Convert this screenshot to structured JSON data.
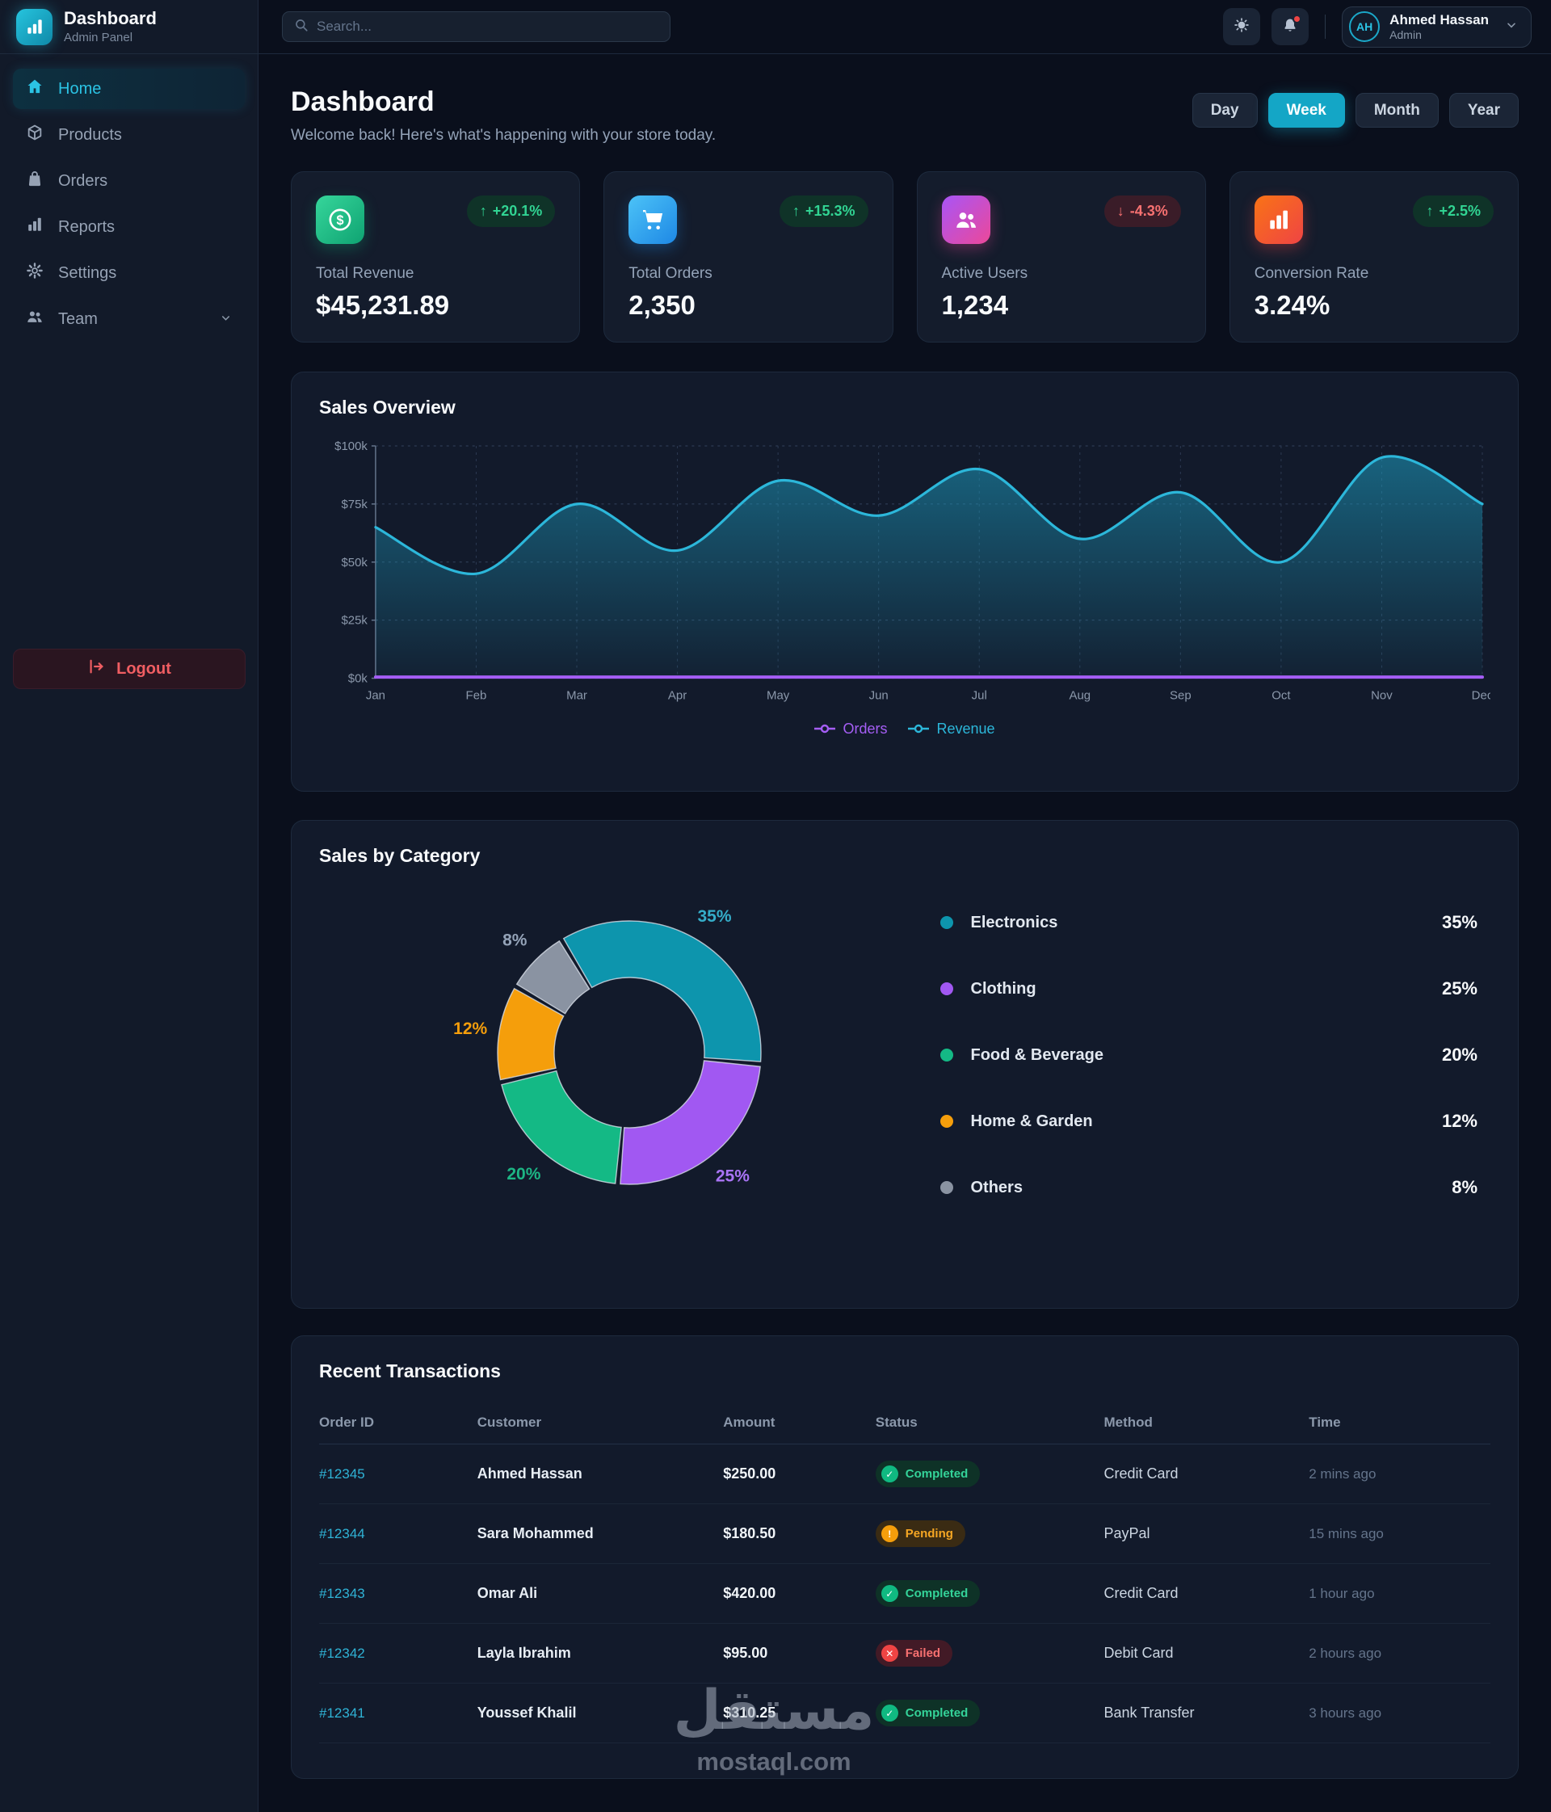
{
  "app": {
    "name": "Dashboard",
    "subtitle": "Admin Panel"
  },
  "topbar": {
    "search_placeholder": "Search...",
    "user": {
      "initials": "AH",
      "name": "Ahmed Hassan",
      "role": "Admin"
    }
  },
  "sidebar": {
    "items": [
      {
        "label": "Home",
        "icon": "home-icon",
        "active": true,
        "chevron": false
      },
      {
        "label": "Products",
        "icon": "box-icon",
        "active": false,
        "chevron": false
      },
      {
        "label": "Orders",
        "icon": "shopping-bag-icon",
        "active": false,
        "chevron": false
      },
      {
        "label": "Reports",
        "icon": "bar-chart-icon",
        "active": false,
        "chevron": false
      },
      {
        "label": "Settings",
        "icon": "gear-icon",
        "active": false,
        "chevron": false
      },
      {
        "label": "Team",
        "icon": "team-icon",
        "active": false,
        "chevron": true
      }
    ],
    "logout_label": "Logout"
  },
  "page": {
    "title": "Dashboard",
    "subtitle": "Welcome back! Here's what's happening with your store today.",
    "range_buttons": [
      {
        "label": "Day",
        "active": false
      },
      {
        "label": "Week",
        "active": true
      },
      {
        "label": "Month",
        "active": false
      },
      {
        "label": "Year",
        "active": false
      }
    ]
  },
  "stats": [
    {
      "label": "Total Revenue",
      "value": "$45,231.89",
      "change": "+20.1%",
      "direction": "up",
      "icon": "dollar-icon",
      "gradient": [
        "#36d69b",
        "#0fa372"
      ]
    },
    {
      "label": "Total Orders",
      "value": "2,350",
      "change": "+15.3%",
      "direction": "up",
      "icon": "cart-icon",
      "gradient": [
        "#4cc3f7",
        "#1e88e5"
      ]
    },
    {
      "label": "Active Users",
      "value": "1,234",
      "change": "-4.3%",
      "direction": "down",
      "icon": "users-icon",
      "gradient": [
        "#a855f7",
        "#ec4899"
      ]
    },
    {
      "label": "Conversion Rate",
      "value": "3.24%",
      "change": "+2.5%",
      "direction": "up",
      "icon": "chart-bars-icon",
      "gradient": [
        "#f97316",
        "#ef4444"
      ]
    }
  ],
  "sales_overview": {
    "title": "Sales Overview"
  },
  "categories_panel": {
    "title": "Sales by Category"
  },
  "chart_data": [
    {
      "type": "line",
      "title": "Sales Overview",
      "x": [
        "Jan",
        "Feb",
        "Mar",
        "Apr",
        "May",
        "Jun",
        "Jul",
        "Aug",
        "Sep",
        "Oct",
        "Nov",
        "Dec"
      ],
      "ylim_k": [
        0,
        100
      ],
      "y_tick_labels": [
        "$0k",
        "$25k",
        "$50k",
        "$75k",
        "$100k"
      ],
      "grid": true,
      "legend_position": "bottom",
      "series": [
        {
          "name": "Orders",
          "color": "#a55ef5",
          "values_k": [
            0.5,
            0.5,
            0.5,
            0.5,
            0.5,
            0.5,
            0.5,
            0.5,
            0.5,
            0.5,
            0.5,
            0.5
          ],
          "note": "appears as a flat line at ≈$0k on this axis"
        },
        {
          "name": "Revenue",
          "color": "#2cb7da",
          "fill": true,
          "values_k": [
            65,
            45,
            75,
            55,
            85,
            70,
            90,
            60,
            80,
            50,
            95,
            75
          ]
        }
      ]
    },
    {
      "type": "donut",
      "title": "Sales by Category",
      "categories": [
        "Electronics",
        "Clothing",
        "Food & Beverage",
        "Home & Garden",
        "Others"
      ],
      "values_pct": [
        35,
        25,
        20,
        12,
        8
      ],
      "colors": [
        "#0d95ad",
        "#a158f2",
        "#14b985",
        "#f59e0b",
        "#8a93a2"
      ],
      "label_colors": [
        "#35adc9",
        "#a974f5",
        "#1db584",
        "#f59e0b",
        "#94a3b8"
      ],
      "start_angle_deg": -31,
      "direction": "clockwise",
      "legend_position": "right"
    }
  ],
  "transactions": {
    "title": "Recent Transactions",
    "columns": [
      "Order ID",
      "Customer",
      "Amount",
      "Status",
      "Method",
      "Time"
    ],
    "rows": [
      {
        "id": "#12345",
        "customer": "Ahmed Hassan",
        "amount": "$250.00",
        "status": "Completed",
        "method": "Credit Card",
        "time": "2 mins ago"
      },
      {
        "id": "#12344",
        "customer": "Sara Mohammed",
        "amount": "$180.50",
        "status": "Pending",
        "method": "PayPal",
        "time": "15 mins ago"
      },
      {
        "id": "#12343",
        "customer": "Omar Ali",
        "amount": "$420.00",
        "status": "Completed",
        "method": "Credit Card",
        "time": "1 hour ago"
      },
      {
        "id": "#12342",
        "customer": "Layla Ibrahim",
        "amount": "$95.00",
        "status": "Failed",
        "method": "Debit Card",
        "time": "2 hours ago"
      },
      {
        "id": "#12341",
        "customer": "Youssef Khalil",
        "amount": "$310.25",
        "status": "Completed",
        "method": "Bank Transfer",
        "time": "3 hours ago"
      }
    ]
  },
  "watermark": {
    "arabic": "مستقل",
    "latin": "mostaql.com"
  },
  "colors": {
    "accent_teal": "#14a6c6",
    "green": "#10b981",
    "red": "#ef4444",
    "amber": "#f59e0b",
    "purple": "#a158f2",
    "page_bg": "#0a0f1c",
    "sidebar_bg": "#121a29",
    "card_bg": "#141c2c"
  }
}
